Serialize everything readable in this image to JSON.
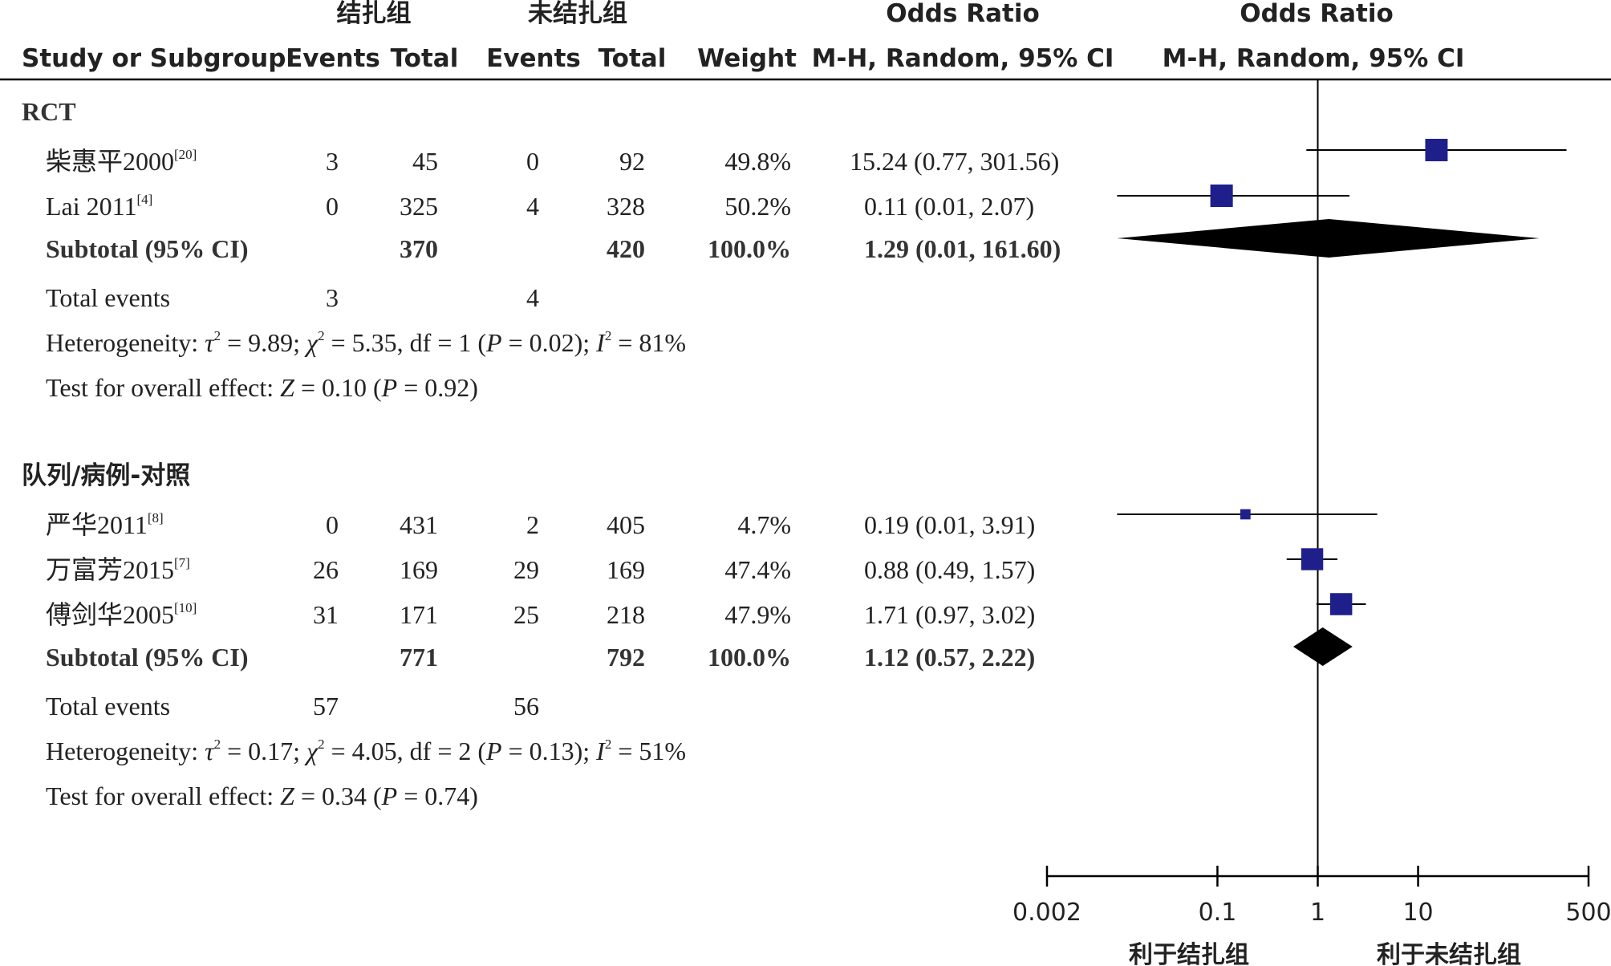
{
  "header": {
    "group1": "结扎组",
    "group2": "未结扎组",
    "or_col": "Odds Ratio",
    "or_plot": "Odds Ratio",
    "study": "Study or Subgroup",
    "events1": "Events",
    "total1": "Total",
    "events2": "Events",
    "total2": "Total",
    "weight": "Weight",
    "method_col": "M-H, Random, 95% CI",
    "method_plot": "M-H, Random, 95% CI"
  },
  "subgroups": [
    {
      "name": "RCT",
      "studies": [
        {
          "name": "柴惠平2000",
          "ref": "[20]",
          "events1": "3",
          "total1": "45",
          "events2": "0",
          "total2": "92",
          "weight": "49.8%",
          "ci_text": "15.24 (0.77, 301.56)"
        },
        {
          "name": "Lai 2011",
          "ref": "[4]",
          "events1": "0",
          "total1": "325",
          "events2": "4",
          "total2": "328",
          "weight": "50.2%",
          "ci_text": "0.11 (0.01, 2.07)"
        }
      ],
      "subtotal": {
        "label": "Subtotal (95% CI)",
        "total1": "370",
        "total2": "420",
        "weight": "100.0%",
        "ci_text": "1.29 (0.01, 161.60)"
      },
      "total_events": {
        "label": "Total events",
        "events1": "3",
        "events2": "4"
      },
      "heterogeneity": {
        "prefix": "Heterogeneity: ",
        "tau": "τ",
        "tau_val": " = 9.89; ",
        "chi": "χ",
        "chi_val": " = 5.35, df = 1 (",
        "p": "P",
        "p_val": " = 0.02); ",
        "i": "I",
        "i_val": " = 81%",
        "sq": "2"
      },
      "overall": {
        "prefix": "Test for overall effect: ",
        "z": "Z",
        "z_val": " = 0.10 (",
        "p": "P",
        "p_val": " = 0.92)"
      }
    },
    {
      "name": "队列/病例-对照",
      "studies": [
        {
          "name": "严华2011",
          "ref": "[8]",
          "events1": "0",
          "total1": "431",
          "events2": "2",
          "total2": "405",
          "weight": "4.7%",
          "ci_text": "0.19 (0.01, 3.91)"
        },
        {
          "name": "万富芳2015",
          "ref": "[7]",
          "events1": "26",
          "total1": "169",
          "events2": "29",
          "total2": "169",
          "weight": "47.4%",
          "ci_text": "0.88 (0.49, 1.57)"
        },
        {
          "name": "傅剑华2005",
          "ref": "[10]",
          "events1": "31",
          "total1": "171",
          "events2": "25",
          "total2": "218",
          "weight": "47.9%",
          "ci_text": "1.71 (0.97, 3.02)"
        }
      ],
      "subtotal": {
        "label": "Subtotal (95% CI)",
        "total1": "771",
        "total2": "792",
        "weight": "100.0%",
        "ci_text": "1.12 (0.57, 2.22)"
      },
      "total_events": {
        "label": "Total events",
        "events1": "57",
        "events2": "56"
      },
      "heterogeneity": {
        "prefix": "Heterogeneity: ",
        "tau": "τ",
        "tau_val": " = 0.17; ",
        "chi": "χ",
        "chi_val": " = 4.05, df = 2 (",
        "p": "P",
        "p_val": " = 0.13); ",
        "i": "I",
        "i_val": " = 51%",
        "sq": "2"
      },
      "overall": {
        "prefix": "Test for overall effect: ",
        "z": "Z",
        "z_val": " = 0.34 (",
        "p": "P",
        "p_val": " = 0.74)"
      }
    }
  ],
  "axis": {
    "ticks": [
      "0.002",
      "0.1",
      "1",
      "10",
      "500"
    ],
    "favours_left": "利于结扎组",
    "favours_right": "利于未结扎组"
  },
  "chart_data": {
    "type": "forest",
    "scale": "log",
    "xlim": [
      0.002,
      500
    ],
    "null_line": 1,
    "colors": {
      "study_square": "#1f1f8c",
      "diamond": "#000000"
    },
    "studies": [
      {
        "subgroup": "RCT",
        "or": 15.24,
        "lower": 0.77,
        "upper": 301.56,
        "weight": 49.8
      },
      {
        "subgroup": "RCT",
        "or": 0.11,
        "lower": 0.01,
        "upper": 2.07,
        "weight": 50.2
      },
      {
        "subgroup": "队列/病例-对照",
        "or": 0.19,
        "lower": 0.01,
        "upper": 3.91,
        "weight": 4.7
      },
      {
        "subgroup": "队列/病例-对照",
        "or": 0.88,
        "lower": 0.49,
        "upper": 1.57,
        "weight": 47.4
      },
      {
        "subgroup": "队列/病例-对照",
        "or": 1.71,
        "lower": 0.97,
        "upper": 3.02,
        "weight": 47.9
      }
    ],
    "subtotals": [
      {
        "subgroup": "RCT",
        "or": 1.29,
        "lower": 0.01,
        "upper": 161.6
      },
      {
        "subgroup": "队列/病例-对照",
        "or": 1.12,
        "lower": 0.57,
        "upper": 2.22
      }
    ]
  }
}
